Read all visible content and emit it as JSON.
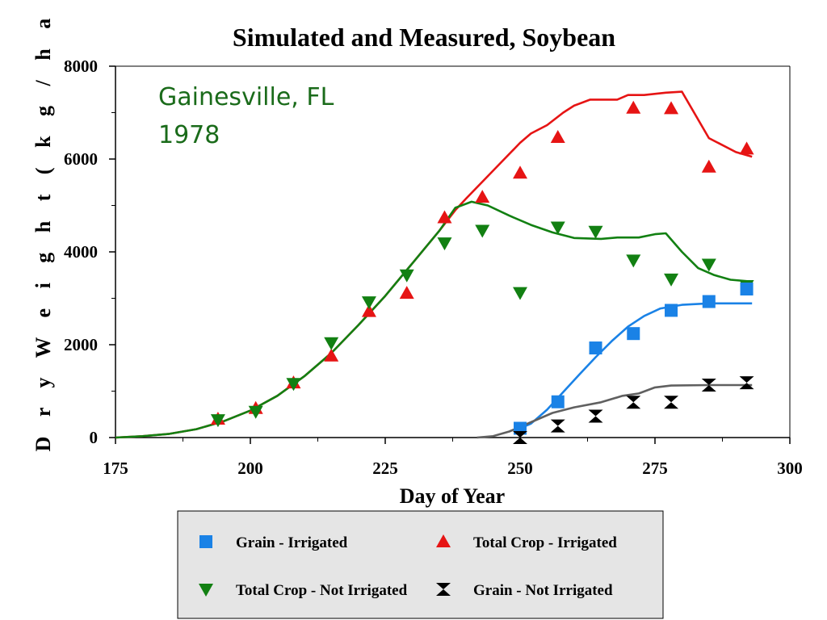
{
  "chart_data": {
    "type": "scatter",
    "title": "Simulated and Measured, Soybean",
    "xlabel": "Day of Year",
    "ylabel": "D r y   W e i g h t   ( k g / h a )",
    "xlim": [
      175,
      300
    ],
    "ylim": [
      0,
      8000
    ],
    "xticks": [
      175,
      200,
      225,
      250,
      275,
      300
    ],
    "yticks": [
      0,
      2000,
      4000,
      6000,
      8000
    ],
    "grid": false,
    "legend_position": "bottom",
    "annotations": [
      "Gainesville, FL",
      "1978"
    ],
    "colors": {
      "grain_irrigated": "#1a82e6",
      "total_irrigated": "#e61414",
      "total_not_irrigated": "#128012",
      "grain_not_irrigated": "#000000",
      "sim_grain_not_irrigated": "#606060",
      "annotation": "#1a6b1a"
    },
    "series": [
      {
        "name": "Grain - Irrigated",
        "kind": "markers",
        "marker": "square",
        "points": [
          [
            250,
            200
          ],
          [
            257,
            770
          ],
          [
            264,
            1930
          ],
          [
            271,
            2240
          ],
          [
            278,
            2740
          ],
          [
            285,
            2930
          ],
          [
            292,
            3200
          ]
        ]
      },
      {
        "name": "Total Crop - Irrigated",
        "kind": "markers",
        "marker": "triangle-up",
        "points": [
          [
            194,
            400
          ],
          [
            201,
            630
          ],
          [
            208,
            1180
          ],
          [
            215,
            1760
          ],
          [
            222,
            2720
          ],
          [
            229,
            3110
          ],
          [
            236,
            4740
          ],
          [
            243,
            5180
          ],
          [
            250,
            5700
          ],
          [
            257,
            6470
          ],
          [
            271,
            7100
          ],
          [
            278,
            7090
          ],
          [
            285,
            5830
          ],
          [
            292,
            6220
          ]
        ]
      },
      {
        "name": "Total Crop - Not Irrigated",
        "kind": "markers",
        "marker": "triangle-down",
        "points": [
          [
            194,
            380
          ],
          [
            201,
            560
          ],
          [
            208,
            1160
          ],
          [
            215,
            2040
          ],
          [
            222,
            2920
          ],
          [
            229,
            3500
          ],
          [
            236,
            4190
          ],
          [
            243,
            4460
          ],
          [
            250,
            3120
          ],
          [
            257,
            4530
          ],
          [
            264,
            4440
          ],
          [
            271,
            3820
          ],
          [
            278,
            3410
          ],
          [
            285,
            3730
          ],
          [
            292,
            3270
          ]
        ]
      },
      {
        "name": "Grain - Not Irrigated",
        "kind": "markers",
        "marker": "hourglass",
        "points": [
          [
            250,
            0
          ],
          [
            257,
            250
          ],
          [
            264,
            460
          ],
          [
            271,
            760
          ],
          [
            278,
            760
          ],
          [
            285,
            1130
          ],
          [
            292,
            1180
          ]
        ]
      },
      {
        "kind": "line",
        "style": "total_irrigated",
        "points": [
          [
            175,
            0
          ],
          [
            180,
            30
          ],
          [
            185,
            80
          ],
          [
            190,
            180
          ],
          [
            195,
            350
          ],
          [
            200,
            580
          ],
          [
            205,
            900
          ],
          [
            210,
            1320
          ],
          [
            215,
            1820
          ],
          [
            220,
            2420
          ],
          [
            225,
            3050
          ],
          [
            230,
            3750
          ],
          [
            235,
            4450
          ],
          [
            238,
            4900
          ],
          [
            240,
            5150
          ],
          [
            245,
            5750
          ],
          [
            250,
            6350
          ],
          [
            252,
            6550
          ],
          [
            255,
            6730
          ],
          [
            258,
            7000
          ],
          [
            260,
            7150
          ],
          [
            263,
            7280
          ],
          [
            268,
            7280
          ],
          [
            270,
            7380
          ],
          [
            273,
            7380
          ],
          [
            277,
            7430
          ],
          [
            280,
            7450
          ],
          [
            285,
            6450
          ],
          [
            290,
            6150
          ],
          [
            293,
            6050
          ]
        ]
      },
      {
        "kind": "line",
        "style": "total_not_irrigated",
        "points": [
          [
            175,
            0
          ],
          [
            180,
            30
          ],
          [
            185,
            80
          ],
          [
            190,
            180
          ],
          [
            195,
            350
          ],
          [
            200,
            580
          ],
          [
            205,
            900
          ],
          [
            210,
            1320
          ],
          [
            215,
            1820
          ],
          [
            220,
            2420
          ],
          [
            225,
            3050
          ],
          [
            230,
            3750
          ],
          [
            235,
            4450
          ],
          [
            238,
            4950
          ],
          [
            241,
            5080
          ],
          [
            244,
            5000
          ],
          [
            248,
            4780
          ],
          [
            252,
            4580
          ],
          [
            256,
            4420
          ],
          [
            260,
            4300
          ],
          [
            265,
            4280
          ],
          [
            268,
            4310
          ],
          [
            272,
            4310
          ],
          [
            275,
            4380
          ],
          [
            277,
            4400
          ],
          [
            280,
            4000
          ],
          [
            283,
            3650
          ],
          [
            286,
            3500
          ],
          [
            289,
            3400
          ],
          [
            293,
            3360
          ]
        ]
      },
      {
        "kind": "line",
        "style": "grain_irrigated",
        "points": [
          [
            249,
            150
          ],
          [
            252,
            300
          ],
          [
            255,
            600
          ],
          [
            258,
            980
          ],
          [
            261,
            1360
          ],
          [
            264,
            1730
          ],
          [
            267,
            2080
          ],
          [
            270,
            2390
          ],
          [
            273,
            2620
          ],
          [
            276,
            2780
          ],
          [
            280,
            2860
          ],
          [
            285,
            2890
          ],
          [
            293,
            2890
          ]
        ]
      },
      {
        "kind": "line",
        "style": "sim_grain_not_irrigated",
        "points": [
          [
            242,
            0
          ],
          [
            245,
            30
          ],
          [
            248,
            130
          ],
          [
            252,
            330
          ],
          [
            256,
            530
          ],
          [
            260,
            650
          ],
          [
            265,
            760
          ],
          [
            269,
            900
          ],
          [
            272,
            950
          ],
          [
            275,
            1080
          ],
          [
            278,
            1120
          ],
          [
            285,
            1130
          ],
          [
            293,
            1130
          ]
        ]
      }
    ]
  }
}
